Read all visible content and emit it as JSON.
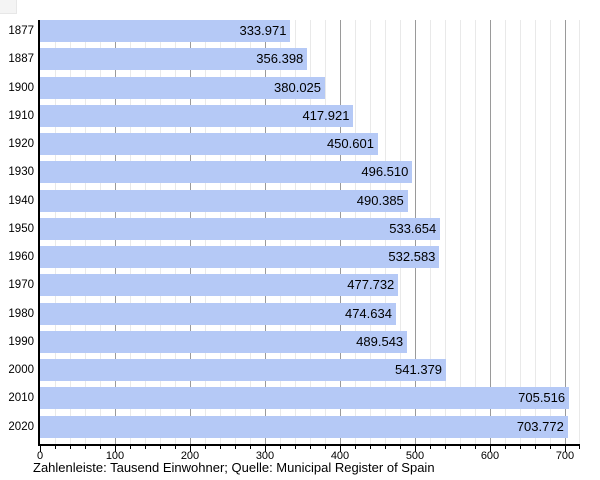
{
  "chart_data": {
    "type": "bar",
    "orientation": "horizontal",
    "title": "",
    "xlabel": "",
    "ylabel": "",
    "categories": [
      "1877",
      "1887",
      "1900",
      "1910",
      "1920",
      "1930",
      "1940",
      "1950",
      "1960",
      "1970",
      "1980",
      "1990",
      "2000",
      "2010",
      "2020"
    ],
    "values": [
      333.971,
      356.398,
      380.025,
      417.921,
      450.601,
      496.51,
      490.385,
      533.654,
      532.583,
      477.732,
      474.634,
      489.543,
      541.379,
      705.516,
      703.772
    ],
    "value_labels": [
      "333.971",
      "356.398",
      "380.025",
      "417.921",
      "450.601",
      "496.510",
      "490.385",
      "533.654",
      "532.583",
      "477.732",
      "474.634",
      "489.543",
      "541.379",
      "705.516",
      "703.772"
    ],
    "xlim": [
      0,
      720
    ],
    "x_major_tick_step": 100,
    "x_minor_tick_step": 20,
    "x_tick_labels": [
      "0",
      "100",
      "200",
      "300",
      "400",
      "500",
      "600",
      "700"
    ],
    "grid": true,
    "legend": "none",
    "unit_note": "Tausend Einwohner",
    "caption": "Zahlenleiste: Tausend Einwohner; Quelle: Municipal Register of Spain",
    "colors": {
      "bar_fill": "#b5c9f6",
      "major_grid": "#9a9a9a",
      "minor_grid": "#e9e9e9",
      "axis": "#000000",
      "text": "#000000",
      "background": "#ffffff"
    }
  }
}
